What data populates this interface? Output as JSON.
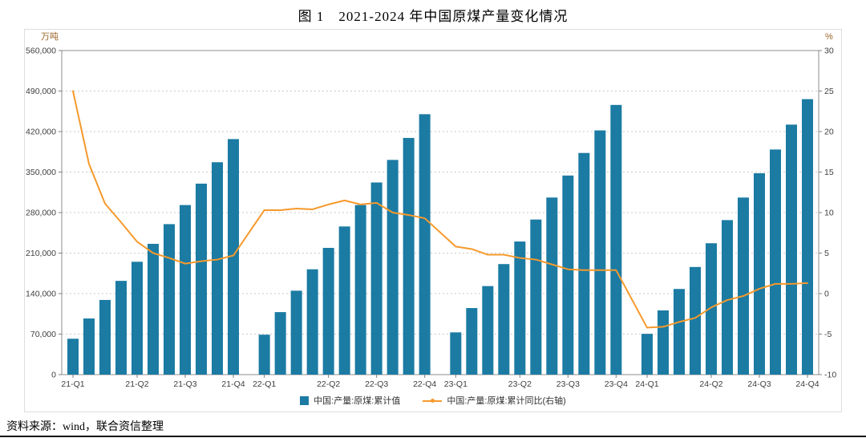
{
  "title": "图 1　2021-2024 年中国原煤产量变化情况",
  "source_note": "资料来源：wind，联合资信整理",
  "colors": {
    "bar": "#1b7ba3",
    "line": "#f6992c",
    "axis_unit_text": "#9a6426",
    "grid": "#c9c9c9",
    "tick_text": "#404040"
  },
  "chart_data": {
    "type": "bar+line",
    "months_per_year": 11,
    "year_groups": [
      "2021",
      "2022",
      "2023",
      "2024"
    ],
    "x_tick_labels": [
      "21-Q1",
      "21-Q2",
      "21-Q3",
      "21-Q4",
      "22-Q1",
      "22-Q2",
      "22-Q3",
      "22-Q4",
      "23-Q1",
      "23-Q2",
      "23-Q3",
      "23-Q4",
      "24-Q1",
      "24-Q2",
      "24-Q3",
      "24-Q4"
    ],
    "x_tick_month_index": [
      0,
      4,
      7,
      10
    ],
    "left_axis": {
      "title": "万吨",
      "min": 0,
      "max": 560000,
      "step": 70000,
      "tick_labels": [
        "0",
        "70,000",
        "140,000",
        "210,000",
        "280,000",
        "350,000",
        "420,000",
        "490,000",
        "560,000"
      ]
    },
    "right_axis": {
      "title": "%",
      "min": -10,
      "max": 30,
      "step": 5,
      "tick_labels": [
        "-10",
        "-5",
        "0",
        "5",
        "10",
        "15",
        "20",
        "25",
        "30"
      ]
    },
    "bar_series": {
      "name": "中国:产量:原煤:累计值",
      "color": "#1b7ba3",
      "values": [
        62000,
        97000,
        129000,
        162000,
        195000,
        226000,
        260000,
        293000,
        330000,
        367000,
        407000,
        69000,
        108000,
        145000,
        182000,
        219000,
        256000,
        293000,
        332000,
        371000,
        409000,
        450000,
        73000,
        115000,
        153000,
        191000,
        230000,
        268000,
        306000,
        344000,
        383000,
        422000,
        466000,
        70500,
        111000,
        148000,
        186000,
        227000,
        267000,
        306000,
        348000,
        389000,
        432000,
        476000
      ]
    },
    "line_series": {
      "name": "中国:产量:原煤:累计同比(右轴)",
      "color": "#f6992c",
      "values": [
        25.0,
        16.0,
        11.1,
        8.8,
        6.4,
        5.0,
        4.4,
        3.7,
        4.0,
        4.2,
        4.7,
        10.3,
        10.3,
        10.5,
        10.4,
        11.0,
        11.5,
        11.0,
        11.2,
        10.0,
        9.7,
        9.3,
        5.8,
        5.5,
        4.8,
        4.8,
        4.4,
        4.2,
        3.6,
        3.0,
        2.9,
        2.9,
        2.9,
        -4.2,
        -4.1,
        -3.5,
        -3.0,
        -1.7,
        -0.8,
        -0.3,
        0.6,
        1.2,
        1.2,
        1.3
      ]
    }
  }
}
